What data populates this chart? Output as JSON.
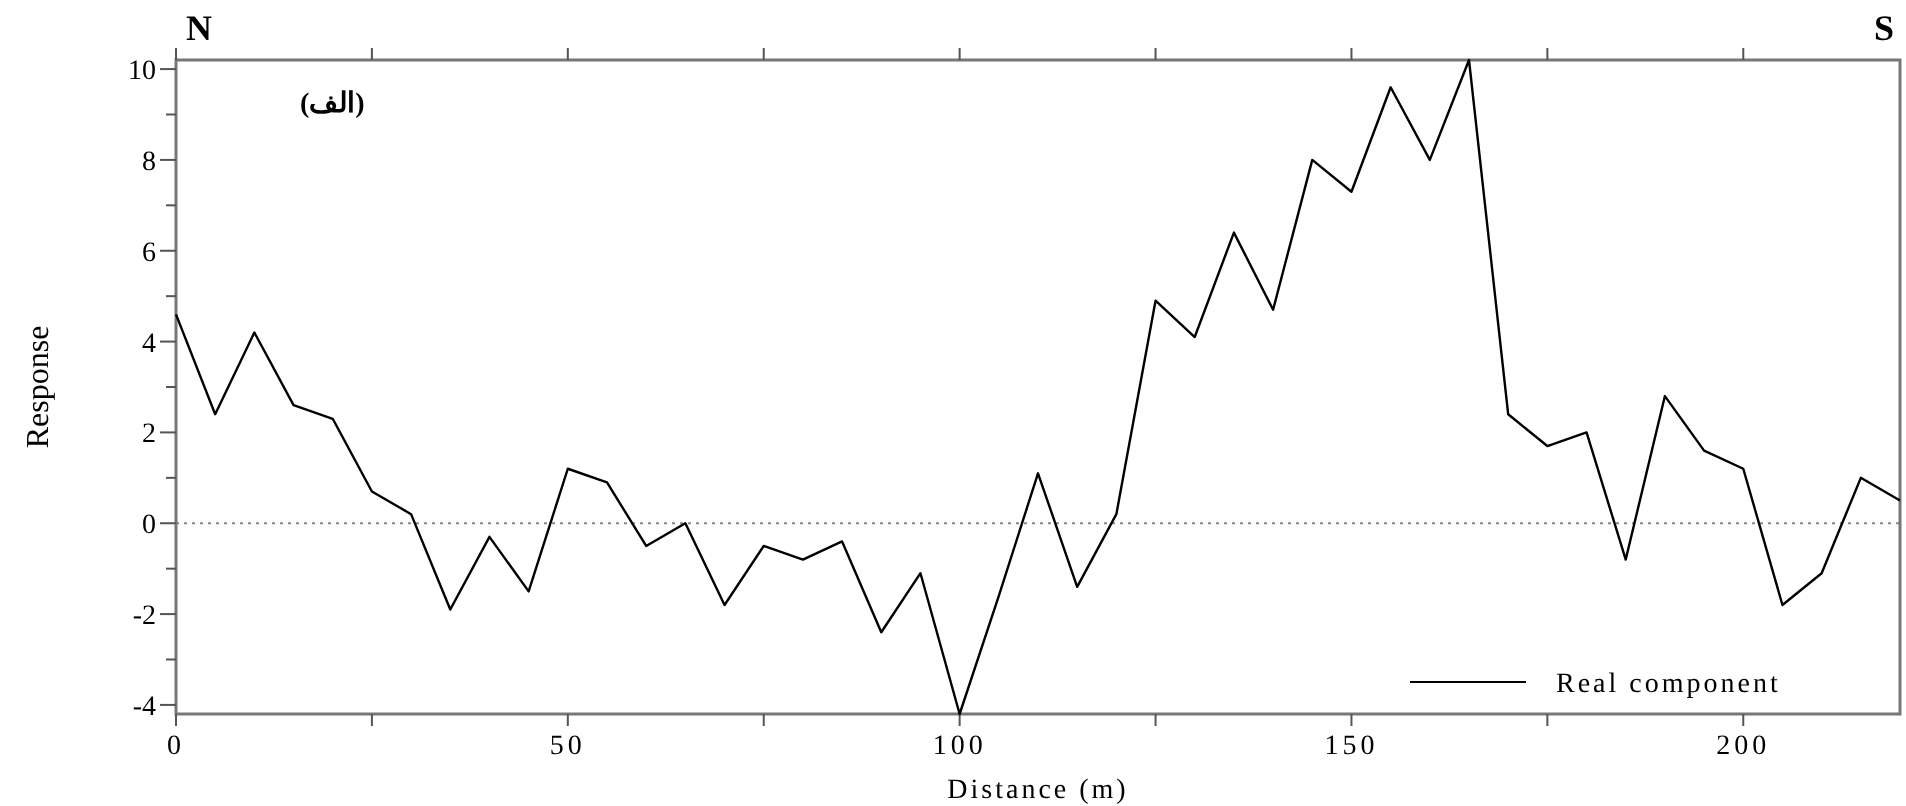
{
  "chart_data": {
    "type": "line",
    "xlabel": "Distance (m)",
    "ylabel": "Response",
    "annotations": [
      "N",
      "S",
      "(الف)"
    ],
    "x": [
      0,
      5,
      10,
      15,
      20,
      25,
      30,
      35,
      40,
      45,
      50,
      55,
      60,
      65,
      70,
      75,
      80,
      85,
      90,
      95,
      100,
      105,
      110,
      115,
      120,
      125,
      130,
      135,
      140,
      145,
      150,
      155,
      160,
      165,
      170,
      175,
      180,
      185,
      190,
      195,
      200,
      205,
      210,
      215,
      220
    ],
    "series": [
      {
        "name": "Real component",
        "color": "#000000",
        "values": [
          4.6,
          2.4,
          4.2,
          2.6,
          2.3,
          0.7,
          0.2,
          -1.9,
          -0.3,
          -1.5,
          1.2,
          0.9,
          -0.5,
          0,
          -1.8,
          -0.5,
          -0.8,
          -0.4,
          -2.4,
          -1.1,
          -4.2,
          -1.6,
          1.1,
          -1.4,
          0.2,
          4.9,
          4.1,
          6.4,
          4.7,
          8.0,
          7.3,
          9.6,
          8.0,
          10.2,
          2.4,
          1.7,
          2.0,
          -0.8,
          2.8,
          1.6,
          1.2,
          -1.8,
          -1.1,
          1.0,
          0.5
        ]
      }
    ],
    "xlim": [
      0,
      220
    ],
    "ylim": [
      -4.2,
      10.2
    ],
    "xticks": [
      0,
      {
        "value": 25,
        "label": null
      },
      50,
      {
        "value": 75,
        "label": null
      },
      100,
      {
        "value": 125,
        "label": null
      },
      150,
      {
        "value": 175,
        "label": null
      },
      200
    ],
    "yticks": [
      -4,
      {
        "value": -3,
        "label": null
      },
      -2,
      {
        "value": -1,
        "label": null
      },
      0,
      {
        "value": 1,
        "label": null
      },
      2,
      {
        "value": 3,
        "label": null
      },
      4,
      {
        "value": 5,
        "label": null
      },
      6,
      {
        "value": 7,
        "label": null
      },
      8,
      {
        "value": 9,
        "label": null
      },
      10
    ],
    "ref_lines": [
      {
        "axis": "y",
        "value": 0,
        "color": "#888888",
        "line_style": "dotted"
      }
    ],
    "grid": false,
    "legend": "bottom right",
    "marker": "none",
    "line_style": "solid"
  }
}
